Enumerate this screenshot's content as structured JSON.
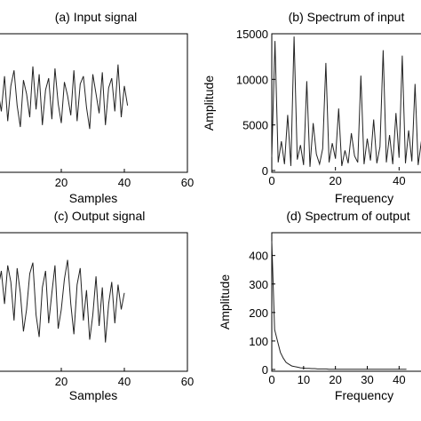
{
  "chart_data": [
    {
      "id": "a",
      "type": "line",
      "title": "(a) Input signal",
      "xlabel": "Samples",
      "ylabel": "",
      "xlim": [
        0,
        60
      ],
      "xticks": [
        20,
        40,
        60
      ],
      "yticks": [],
      "series": [
        {
          "values": [
            0.15,
            -0.35,
            0.55,
            -0.6,
            0.3,
            0.7,
            -0.2,
            -0.75,
            0.45,
            0.1,
            -0.5,
            0.8,
            -0.3,
            0.6,
            -0.7,
            0.2,
            0.5,
            -0.55,
            0.75,
            -0.15,
            -0.65,
            0.4,
            0.05,
            -0.45,
            0.7,
            -0.6,
            0.35,
            0.55,
            -0.25,
            -0.8,
            0.6,
            0.1,
            -0.4,
            0.65,
            -0.7,
            0.25,
            0.5,
            -0.35,
            0.85,
            -0.5,
            0.3,
            -0.2
          ]
        }
      ]
    },
    {
      "id": "b",
      "type": "line",
      "title": "(b) Spectrum of input",
      "xlabel": "Frequency",
      "ylabel": "Amplitude",
      "xlim": [
        0,
        48
      ],
      "ylim": [
        0,
        15000
      ],
      "xticks": [
        0,
        20,
        40
      ],
      "yticks": [
        0,
        5000,
        10000,
        15000
      ],
      "series": [
        {
          "values": [
            1500,
            14200,
            900,
            3200,
            700,
            6100,
            500,
            14700,
            1200,
            2800,
            600,
            9800,
            400,
            5200,
            1800,
            700,
            2400,
            11800,
            900,
            3000,
            1300,
            6800,
            500,
            2200,
            800,
            4100,
            1600,
            900,
            10400,
            700,
            3500,
            1100,
            5600,
            800,
            2600,
            13200,
            900,
            3900,
            700,
            6300,
            1400,
            12600,
            800,
            4400,
            1000,
            9500,
            600,
            3200
          ]
        }
      ]
    },
    {
      "id": "c",
      "type": "line",
      "title": "(c) Output signal",
      "xlabel": "Samples",
      "ylabel": "",
      "xlim": [
        0,
        60
      ],
      "xticks": [
        20,
        40,
        60
      ],
      "yticks": [],
      "series": [
        {
          "values": [
            0.2,
            0.5,
            -0.1,
            0.6,
            0.3,
            -0.4,
            0.55,
            0.1,
            -0.6,
            -0.2,
            0.45,
            0.65,
            -0.3,
            -0.7,
            0.2,
            0.5,
            -0.45,
            0.1,
            0.6,
            -0.55,
            -0.2,
            0.35,
            0.7,
            -0.1,
            -0.65,
            0.25,
            0.55,
            -0.4,
            0.15,
            -0.75,
            -0.3,
            0.4,
            -0.5,
            0.2,
            -0.8,
            -0.1,
            0.3,
            -0.45,
            0.25,
            -0.2,
            0.1
          ]
        }
      ]
    },
    {
      "id": "d",
      "type": "line",
      "title": "(d) Spectrum of output",
      "xlabel": "Frequency",
      "ylabel": "Amplitude",
      "xlim": [
        0,
        48
      ],
      "ylim": [
        0,
        480
      ],
      "xticks": [
        0,
        10,
        20,
        30,
        40
      ],
      "yticks": [
        0,
        100,
        200,
        300,
        400
      ],
      "series": [
        {
          "values": [
            450,
            140,
            100,
            60,
            40,
            25,
            18,
            12,
            10,
            8,
            6,
            5,
            4,
            4,
            3,
            3,
            2,
            2,
            2,
            2,
            1,
            1,
            1,
            1,
            1,
            1,
            1,
            1,
            1,
            1,
            1,
            1,
            1,
            1,
            1,
            1,
            1,
            1,
            1,
            1,
            1,
            1,
            1,
            1,
            1,
            1,
            1,
            1
          ]
        }
      ]
    }
  ]
}
